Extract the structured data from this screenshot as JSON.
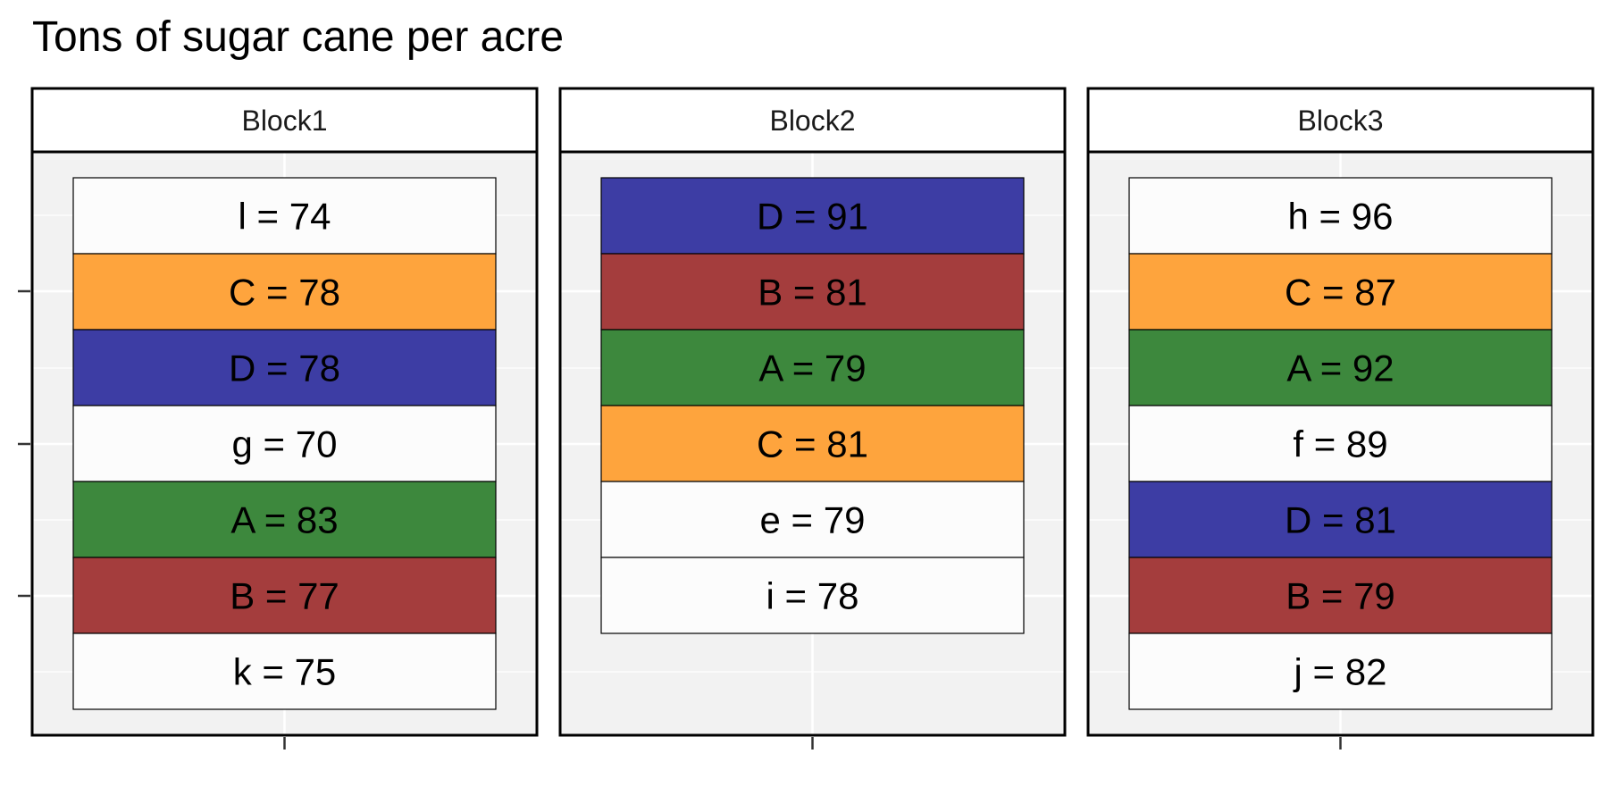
{
  "chart_data": {
    "type": "table",
    "title": "Tons of sugar cane per acre",
    "xlabel": "",
    "ylabel": "",
    "grid": true,
    "colors": {
      "A": "#3d883d",
      "B": "#a43d3d",
      "C": "#fea43d",
      "D": "#3d3da4",
      "other": "#fcfcfc",
      "panel_background": "#f2f2f2",
      "gridline": "#ffffff"
    },
    "panels": [
      {
        "label": "Block1",
        "plots": [
          {
            "treatment": "l",
            "value": 74,
            "label": "l = 74"
          },
          {
            "treatment": "C",
            "value": 78,
            "label": "C = 78"
          },
          {
            "treatment": "D",
            "value": 78,
            "label": "D = 78"
          },
          {
            "treatment": "g",
            "value": 70,
            "label": "g = 70"
          },
          {
            "treatment": "A",
            "value": 83,
            "label": "A = 83"
          },
          {
            "treatment": "B",
            "value": 77,
            "label": "B = 77"
          },
          {
            "treatment": "k",
            "value": 75,
            "label": "k = 75"
          }
        ]
      },
      {
        "label": "Block2",
        "plots": [
          {
            "treatment": "D",
            "value": 91,
            "label": "D = 91"
          },
          {
            "treatment": "B",
            "value": 81,
            "label": "B = 81"
          },
          {
            "treatment": "A",
            "value": 79,
            "label": "A = 79"
          },
          {
            "treatment": "C",
            "value": 81,
            "label": "C = 81"
          },
          {
            "treatment": "e",
            "value": 79,
            "label": "e = 79"
          },
          {
            "treatment": "i",
            "value": 78,
            "label": "i = 78"
          }
        ]
      },
      {
        "label": "Block3",
        "plots": [
          {
            "treatment": "h",
            "value": 96,
            "label": "h = 96"
          },
          {
            "treatment": "C",
            "value": 87,
            "label": "C = 87"
          },
          {
            "treatment": "A",
            "value": 92,
            "label": "A = 92"
          },
          {
            "treatment": "f",
            "value": 89,
            "label": "f = 89"
          },
          {
            "treatment": "D",
            "value": 81,
            "label": "D = 81"
          },
          {
            "treatment": "B",
            "value": 79,
            "label": "B = 79"
          },
          {
            "treatment": "j",
            "value": 82,
            "label": "j = 82"
          }
        ]
      }
    ]
  }
}
